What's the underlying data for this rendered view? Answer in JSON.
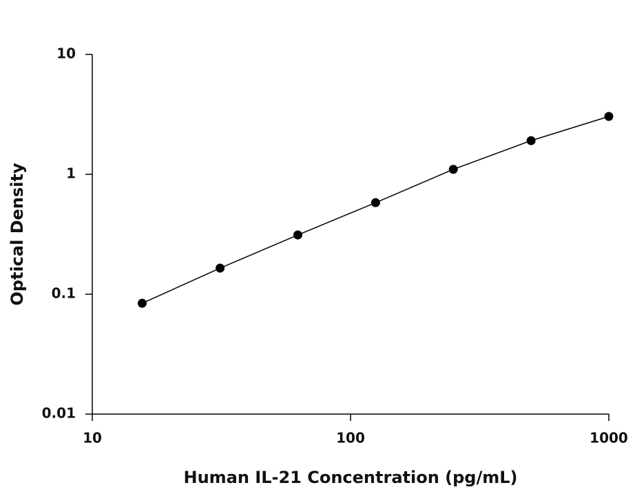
{
  "chart_data": {
    "type": "line",
    "x_label": "Human IL-21 Concentration (pg/mL)",
    "y_label": "Optical Density",
    "x": [
      15.6,
      31.25,
      62.5,
      125,
      250,
      500,
      1000
    ],
    "series": [
      {
        "color": "#000000",
        "values": [
          0.084,
          0.165,
          0.312,
          0.58,
          1.1,
          1.91,
          3.04
        ]
      }
    ],
    "x_log": true,
    "y_log": true,
    "xlim": [
      10,
      1000
    ],
    "xticks": [
      10,
      100,
      1000
    ],
    "ylim": [
      0.01,
      10
    ],
    "yticks": [
      0.01,
      0.1,
      1,
      10
    ],
    "markers": true
  }
}
